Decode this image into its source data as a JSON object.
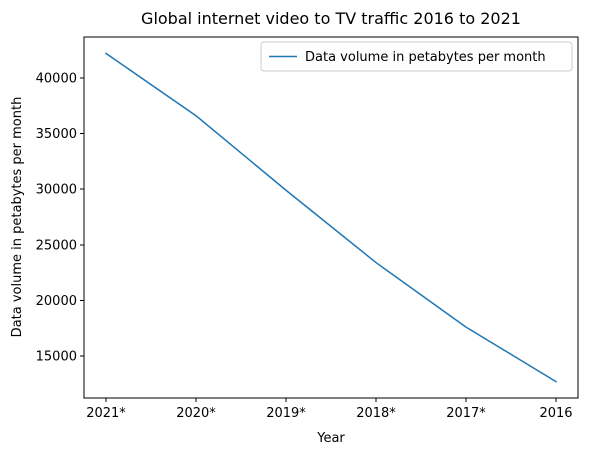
{
  "chart_data": {
    "type": "line",
    "title": "Global internet video to TV traffic 2016 to 2021",
    "xlabel": "Year",
    "ylabel": "Data volume in petabytes per month",
    "categories": [
      "2021*",
      "2020*",
      "2019*",
      "2018*",
      "2017*",
      "2016"
    ],
    "series": [
      {
        "name": "Data volume in petabytes per month",
        "values": [
          42200,
          36600,
          29900,
          23400,
          17600,
          12700
        ],
        "color": "#1f77b4"
      }
    ],
    "ylim": [
      11225,
      43675
    ],
    "yticks": [
      15000,
      20000,
      25000,
      30000,
      35000,
      40000
    ],
    "grid": false,
    "legend_position": "top-right"
  }
}
